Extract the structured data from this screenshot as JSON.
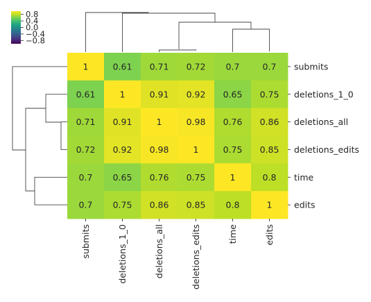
{
  "chart_data": {
    "type": "heatmap",
    "title": "",
    "xlabel": "",
    "ylabel": "",
    "variant": "clustermap",
    "colormap": "viridis",
    "color_range": [
      -1,
      1
    ],
    "rows": [
      "submits",
      "deletions_1_0",
      "deletions_all",
      "deletions_edits",
      "time",
      "edits"
    ],
    "columns": [
      "submits",
      "deletions_1_0",
      "deletions_all",
      "deletions_edits",
      "time",
      "edits"
    ],
    "values": [
      [
        1,
        0.61,
        0.71,
        0.72,
        0.7,
        0.7
      ],
      [
        0.61,
        1,
        0.91,
        0.92,
        0.65,
        0.75
      ],
      [
        0.71,
        0.91,
        1,
        0.98,
        0.76,
        0.86
      ],
      [
        0.72,
        0.92,
        0.98,
        1,
        0.75,
        0.85
      ],
      [
        0.7,
        0.65,
        0.76,
        0.75,
        1,
        0.8
      ],
      [
        0.7,
        0.75,
        0.86,
        0.85,
        0.8,
        1
      ]
    ],
    "colorbar": {
      "ticks": [
        0.8,
        0.4,
        0.0,
        -0.4,
        -0.8
      ],
      "tick_labels": [
        "0.8",
        "0.4",
        "0.0",
        "−0.4",
        "−0.8"
      ]
    },
    "dendrograms": [
      "rows",
      "columns"
    ]
  }
}
